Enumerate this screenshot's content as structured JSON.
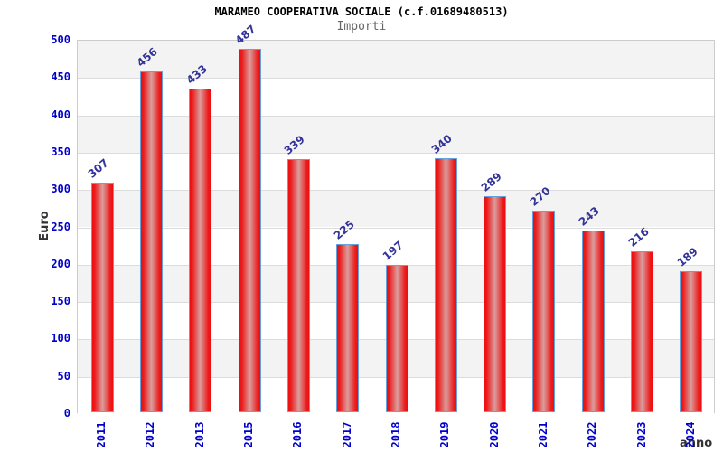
{
  "header": {
    "title": "MARAMEO COOPERATIVA SOCIALE (c.f.01689480513)",
    "subtitle": "Importi"
  },
  "chart_data": {
    "type": "bar",
    "title": "MARAMEO COOPERATIVA SOCIALE (c.f.01689480513)",
    "subtitle": "Importi",
    "categories": [
      "2011",
      "2012",
      "2013",
      "2015",
      "2016",
      "2017",
      "2018",
      "2019",
      "2020",
      "2021",
      "2022",
      "2023",
      "2024"
    ],
    "values": [
      307,
      456,
      433,
      487,
      339,
      225,
      197,
      340,
      289,
      270,
      243,
      216,
      189
    ],
    "xlabel": "anno",
    "ylabel": "Euro",
    "ylim": [
      0,
      500
    ],
    "ytick_step": 50,
    "grid": "horizontal-bands-alternating",
    "legend": "none",
    "colors": {
      "bar_red": "#ee0e0e",
      "bar_highlight": "#d99e9e",
      "bar_border_blue": "#64a2de",
      "tick_label_blue": "#0000cd",
      "value_label_navy": "#333399",
      "axis_title_dark": "#333333",
      "band_gray": "#f3f3f3",
      "band_white": "#ffffff",
      "gridline_gray": "#dcdcdc",
      "plot_border_gray": "#cccccc",
      "subtitle_gray": "#666666",
      "title_black": "#000000"
    }
  }
}
